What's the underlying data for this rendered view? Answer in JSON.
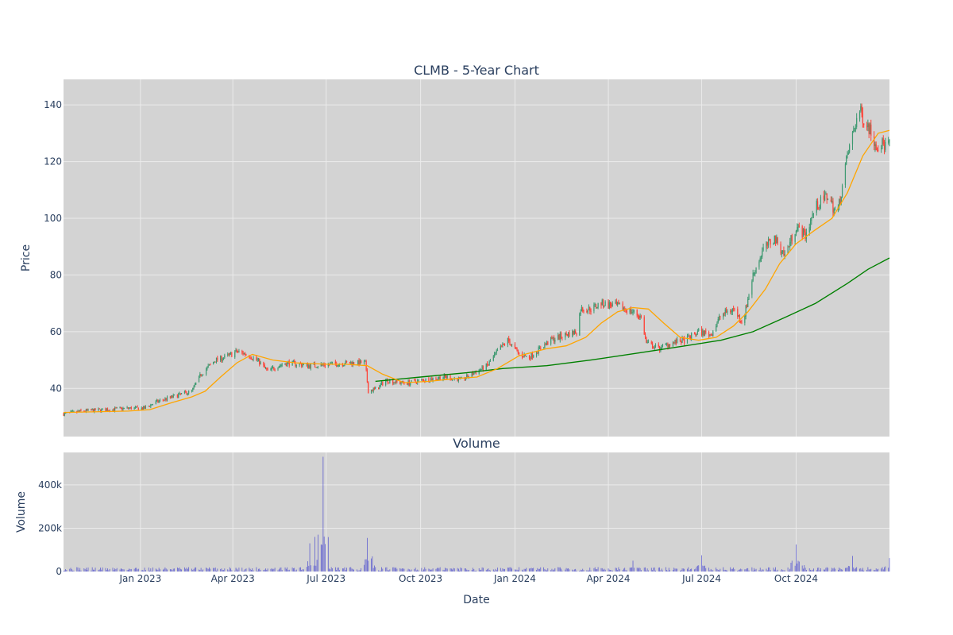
{
  "chart_data": [
    {
      "type": "candlestick",
      "title": "CLMB - 5-Year Chart",
      "ylabel": "Price",
      "ylim": [
        23,
        149
      ],
      "yticks": [
        40,
        60,
        80,
        100,
        120,
        140
      ],
      "x_range": [
        "2022-10-18",
        "2024-12-31"
      ],
      "colors": {
        "background": "#d3d3d3",
        "grid": "#ebebeb",
        "increasing": "#3d9970",
        "decreasing": "#ff4136",
        "ma_fast": "#ffa500",
        "ma_slow": "#008000"
      },
      "ohlc_note": "daily candles sampled from price path",
      "price_path": [
        [
          "2022-10-18",
          31
        ],
        [
          "2022-11-05",
          32
        ],
        [
          "2022-12-01",
          32.5
        ],
        [
          "2022-12-20",
          33
        ],
        [
          "2023-01-05",
          33
        ],
        [
          "2023-01-15",
          35
        ],
        [
          "2023-02-01",
          37
        ],
        [
          "2023-02-20",
          39
        ],
        [
          "2023-03-01",
          45
        ],
        [
          "2023-03-15",
          50
        ],
        [
          "2023-03-25",
          51
        ],
        [
          "2023-04-05",
          53
        ],
        [
          "2023-04-15",
          52
        ],
        [
          "2023-04-25",
          50
        ],
        [
          "2023-05-05",
          46
        ],
        [
          "2023-05-15",
          48
        ],
        [
          "2023-05-25",
          49
        ],
        [
          "2023-06-15",
          48
        ],
        [
          "2023-07-05",
          48.5
        ],
        [
          "2023-07-25",
          49
        ],
        [
          "2023-08-08",
          49
        ],
        [
          "2023-08-11",
          39
        ],
        [
          "2023-08-20",
          40
        ],
        [
          "2023-08-28",
          43
        ],
        [
          "2023-09-10",
          42
        ],
        [
          "2023-09-20",
          42
        ],
        [
          "2023-10-05",
          43
        ],
        [
          "2023-10-25",
          44
        ],
        [
          "2023-11-10",
          43
        ],
        [
          "2023-11-20",
          45
        ],
        [
          "2023-12-05",
          48
        ],
        [
          "2023-12-15",
          53
        ],
        [
          "2023-12-25",
          57
        ],
        [
          "2024-01-05",
          52
        ],
        [
          "2024-01-15",
          51
        ],
        [
          "2024-01-25",
          54
        ],
        [
          "2024-02-05",
          57
        ],
        [
          "2024-02-20",
          59
        ],
        [
          "2024-03-01",
          60
        ],
        [
          "2024-03-05",
          68
        ],
        [
          "2024-03-15",
          68
        ],
        [
          "2024-03-25",
          70
        ],
        [
          "2024-04-10",
          69
        ],
        [
          "2024-04-25",
          67
        ],
        [
          "2024-05-03",
          65
        ],
        [
          "2024-05-08",
          56
        ],
        [
          "2024-05-20",
          54
        ],
        [
          "2024-06-01",
          56
        ],
        [
          "2024-06-15",
          57
        ],
        [
          "2024-06-28",
          60
        ],
        [
          "2024-07-10",
          59
        ],
        [
          "2024-07-20",
          66
        ],
        [
          "2024-08-01",
          68
        ],
        [
          "2024-08-10",
          63
        ],
        [
          "2024-08-20",
          80
        ],
        [
          "2024-08-30",
          89
        ],
        [
          "2024-09-10",
          93
        ],
        [
          "2024-09-20",
          87
        ],
        [
          "2024-10-01",
          97
        ],
        [
          "2024-10-10",
          94
        ],
        [
          "2024-10-20",
          104
        ],
        [
          "2024-11-01",
          108
        ],
        [
          "2024-11-10",
          101
        ],
        [
          "2024-11-20",
          122
        ],
        [
          "2024-12-01",
          138
        ],
        [
          "2024-12-10",
          133
        ],
        [
          "2024-12-18",
          126
        ],
        [
          "2024-12-31",
          126
        ]
      ],
      "ma_fast": [
        [
          "2022-10-18",
          31.5
        ],
        [
          "2022-12-20",
          32
        ],
        [
          "2023-01-10",
          32.5
        ],
        [
          "2023-02-01",
          35
        ],
        [
          "2023-02-20",
          37
        ],
        [
          "2023-03-05",
          39
        ],
        [
          "2023-03-20",
          44
        ],
        [
          "2023-04-05",
          49
        ],
        [
          "2023-04-20",
          52
        ],
        [
          "2023-05-10",
          50
        ],
        [
          "2023-06-01",
          49
        ],
        [
          "2023-07-01",
          48.5
        ],
        [
          "2023-07-20",
          48.5
        ],
        [
          "2023-08-10",
          48
        ],
        [
          "2023-08-25",
          45
        ],
        [
          "2023-09-15",
          42
        ],
        [
          "2023-10-10",
          42.5
        ],
        [
          "2023-11-05",
          43.5
        ],
        [
          "2023-11-25",
          44
        ],
        [
          "2023-12-15",
          47
        ],
        [
          "2024-01-05",
          51.5
        ],
        [
          "2024-02-01",
          54
        ],
        [
          "2024-02-20",
          55
        ],
        [
          "2024-03-10",
          58
        ],
        [
          "2024-03-25",
          63
        ],
        [
          "2024-04-10",
          67
        ],
        [
          "2024-04-25",
          68.5
        ],
        [
          "2024-05-10",
          68
        ],
        [
          "2024-05-25",
          63
        ],
        [
          "2024-06-10",
          58
        ],
        [
          "2024-06-28",
          57
        ],
        [
          "2024-07-15",
          58
        ],
        [
          "2024-08-01",
          62
        ],
        [
          "2024-08-15",
          67
        ],
        [
          "2024-09-01",
          75
        ],
        [
          "2024-09-15",
          84
        ],
        [
          "2024-10-01",
          91
        ],
        [
          "2024-10-20",
          96
        ],
        [
          "2024-11-05",
          100
        ],
        [
          "2024-11-20",
          109
        ],
        [
          "2024-12-05",
          122
        ],
        [
          "2024-12-20",
          130
        ],
        [
          "2024-12-31",
          131
        ]
      ],
      "ma_slow": [
        [
          "2023-08-18",
          42.5
        ],
        [
          "2023-10-01",
          44
        ],
        [
          "2023-11-15",
          45.5
        ],
        [
          "2023-12-20",
          47
        ],
        [
          "2024-02-01",
          48
        ],
        [
          "2024-03-15",
          50
        ],
        [
          "2024-05-01",
          52.5
        ],
        [
          "2024-06-15",
          55
        ],
        [
          "2024-07-20",
          57
        ],
        [
          "2024-08-20",
          60
        ],
        [
          "2024-09-20",
          65
        ],
        [
          "2024-10-20",
          70
        ],
        [
          "2024-11-20",
          77
        ],
        [
          "2024-12-10",
          82
        ],
        [
          "2024-12-31",
          86
        ]
      ]
    },
    {
      "type": "bar",
      "title": "Volume",
      "ylabel": "Volume",
      "xlabel": "Date",
      "ylim": [
        0,
        550000
      ],
      "yticks": [
        0,
        200000,
        400000
      ],
      "ytick_labels": [
        "0",
        "200k",
        "400k"
      ],
      "color": "#0000cd",
      "spikes": [
        [
          "2023-06-15",
          130000
        ],
        [
          "2023-06-20",
          160000
        ],
        [
          "2023-06-28",
          530000
        ],
        [
          "2023-08-10",
          155000
        ],
        [
          "2023-08-15",
          70000
        ],
        [
          "2024-04-25",
          50000
        ],
        [
          "2024-07-01",
          75000
        ],
        [
          "2024-10-01",
          125000
        ],
        [
          "2024-10-05",
          80000
        ],
        [
          "2024-11-25",
          72000
        ],
        [
          "2024-12-31",
          62000
        ]
      ],
      "base_level": 12000
    }
  ],
  "x_axis": {
    "ticks": [
      "2023-01-01",
      "2023-04-01",
      "2023-07-01",
      "2023-10-01",
      "2024-01-01",
      "2024-04-01",
      "2024-07-01",
      "2024-10-01"
    ],
    "tick_labels": [
      "Jan 2023",
      "Apr 2023",
      "Jul 2023",
      "Oct 2023",
      "Jan 2024",
      "Apr 2024",
      "Jul 2024",
      "Oct 2024"
    ]
  }
}
